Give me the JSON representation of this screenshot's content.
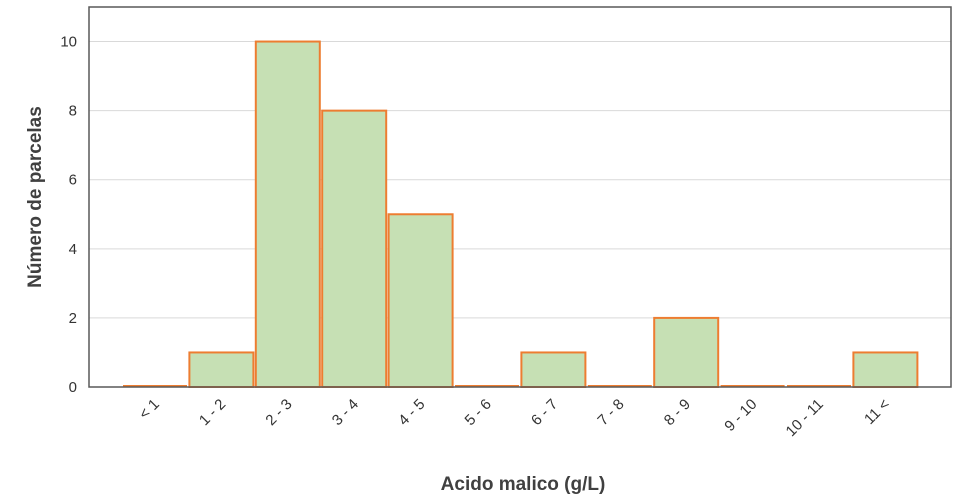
{
  "chart_data": {
    "type": "bar",
    "categories": [
      "< 1",
      "1 - 2",
      "2 - 3",
      "3 - 4",
      "4 - 5",
      "5 - 6",
      "6 - 7",
      "7 - 8",
      "8 - 9",
      "9 - 10",
      "10 - 11",
      "11 <"
    ],
    "values": [
      0,
      1,
      10,
      8,
      5,
      0,
      1,
      0,
      2,
      0,
      0,
      1
    ],
    "xlabel": "Acido malico (g/L)",
    "ylabel": "Número de parcelas",
    "ylim": [
      0,
      11
    ],
    "yticks": [
      0,
      2,
      4,
      6,
      8,
      10
    ],
    "grid": true,
    "bar_fill": "#c6e0b4",
    "bar_stroke": "#ed7d31",
    "grid_color": "#d9d9d9",
    "frame_color": "#595959"
  }
}
